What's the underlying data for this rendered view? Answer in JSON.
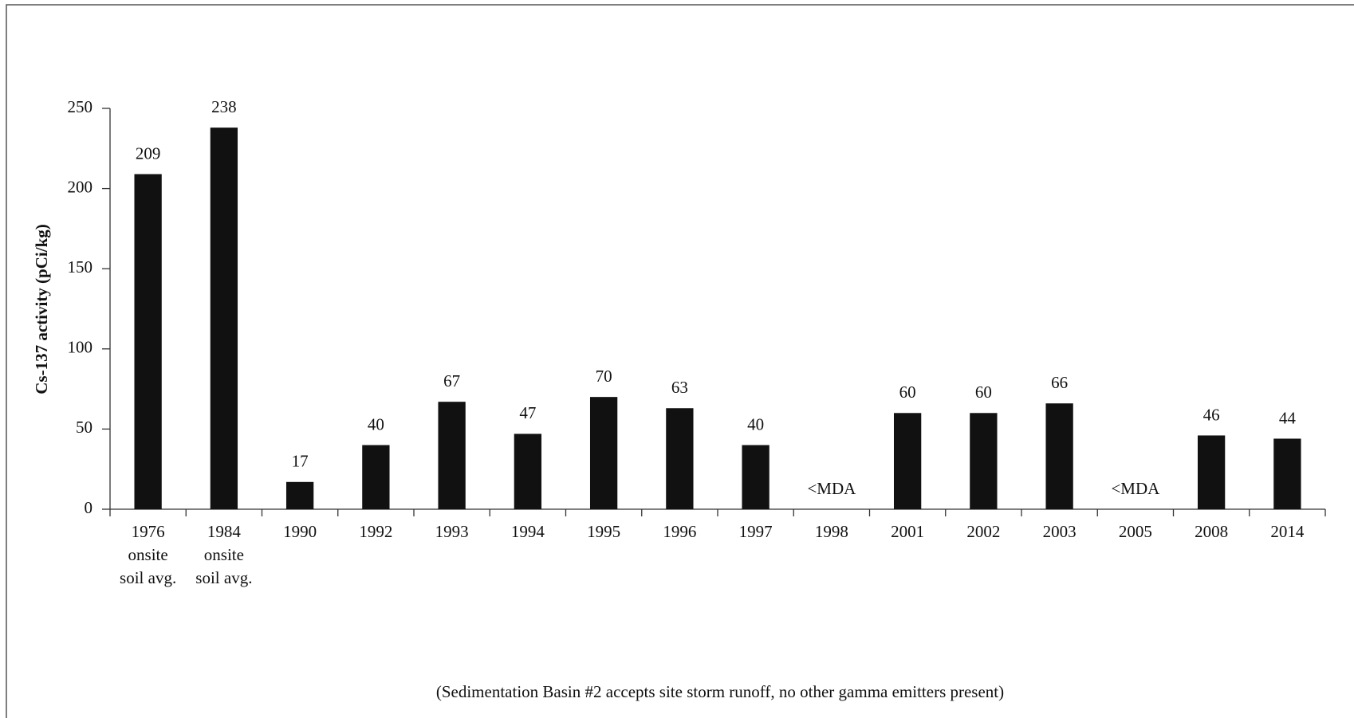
{
  "chart_data": {
    "type": "bar",
    "y_label": "Cs-137 activity (pCi/kg)",
    "footnote": "(Sedimentation Basin #2 accepts site storm runoff, no other gamma emitters present)",
    "categories": [
      "1976\nonsite\nsoil avg.",
      "1984\nonsite\nsoil avg.",
      "1990",
      "1992",
      "1993",
      "1994",
      "1995",
      "1996",
      "1997",
      "1998",
      "2001",
      "2002",
      "2003",
      "2005",
      "2008",
      "2014"
    ],
    "values": [
      209,
      238,
      17,
      40,
      67,
      47,
      70,
      63,
      40,
      null,
      60,
      60,
      66,
      null,
      46,
      44
    ],
    "value_labels": [
      "209",
      "238",
      "17",
      "40",
      "67",
      "47",
      "70",
      "63",
      "40",
      "<MDA",
      "60",
      "60",
      "66",
      "<MDA",
      "46",
      "44"
    ],
    "color": "#111111",
    "ylim": [
      0,
      250
    ],
    "yticks": [
      0,
      50,
      100,
      150,
      200,
      250
    ],
    "grid": false
  }
}
